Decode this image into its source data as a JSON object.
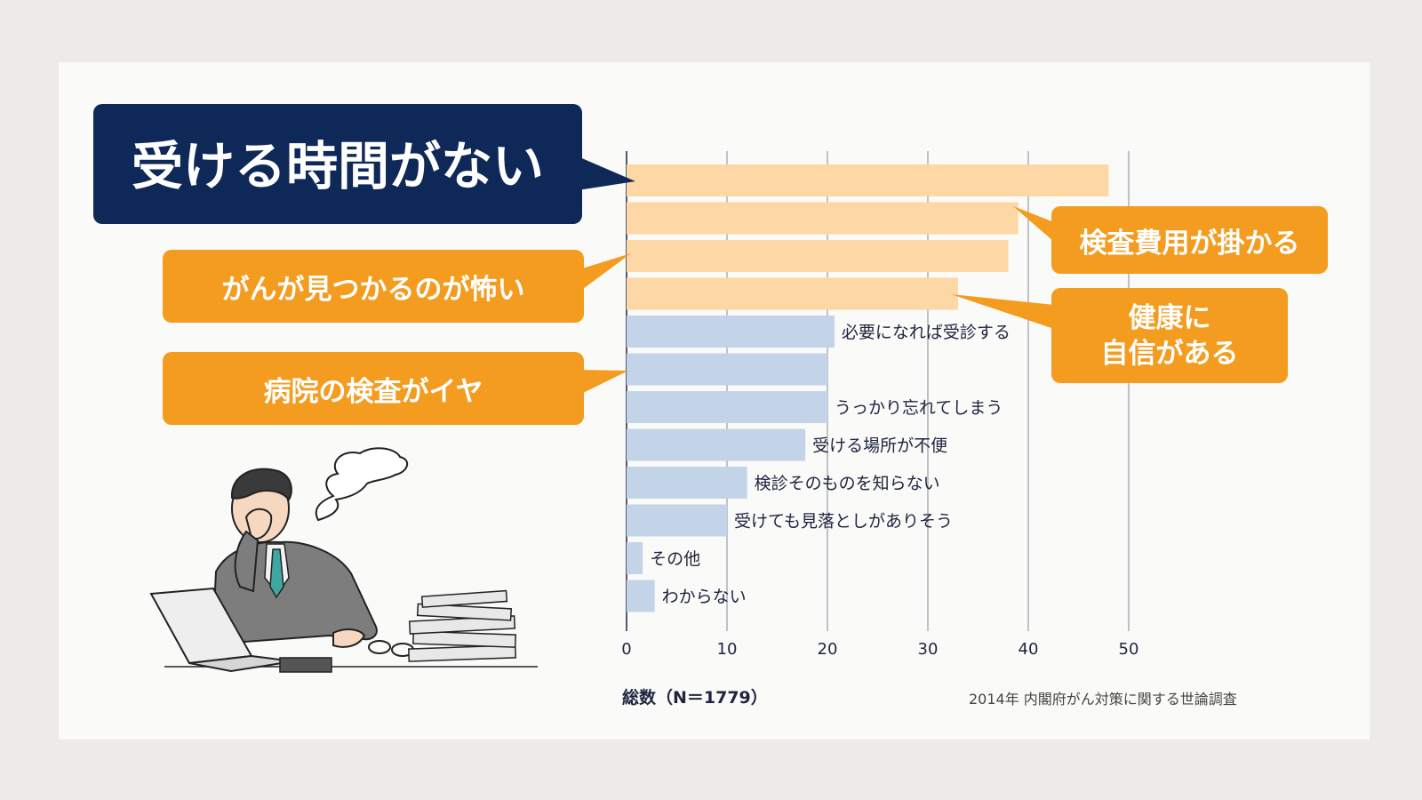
{
  "callouts": {
    "main": "受ける時間がない",
    "fear": "がんが見つかるのが怖い",
    "hospital": "病院の検査がイヤ",
    "cost": "検査費用が掛かる",
    "health_line1": "健康に",
    "health_line2": "自信がある"
  },
  "colors": {
    "navy": "#0e2857",
    "orange": "#f39c1f",
    "bar_orange": "#fdd7a4",
    "bar_blue": "#c3d4e8",
    "grid": "#2a3150",
    "label": "#1f2440"
  },
  "chart_data": {
    "type": "bar",
    "orientation": "horizontal",
    "categories": [
      "受ける時間がない",
      "検査費用が掛かる",
      "がんが見つかるのが怖い",
      "健康に自信がある",
      "必要になれば受診する",
      "病院の検査がイヤ",
      "うっかり忘れてしまう",
      "受ける場所が不便",
      "検診そのものを知らない",
      "受けても見落としがありそう",
      "その他",
      "わからない"
    ],
    "inline_labels": [
      "",
      "",
      "",
      "",
      "必要になれば受診する",
      "",
      "うっかり忘れてしまう",
      "受ける場所が不便",
      "検診そのものを知らない",
      "受けても見落としがありそう",
      "その他",
      "わからない"
    ],
    "values": [
      48.0,
      39.0,
      38.0,
      33.0,
      20.7,
      20.0,
      20.0,
      17.8,
      12.0,
      10.0,
      1.6,
      2.8
    ],
    "highlight_count": 4,
    "xlim": [
      0,
      50
    ],
    "xticks": [
      "0",
      "10",
      "20",
      "30",
      "40",
      "50"
    ],
    "grid": true
  },
  "footer": {
    "total": "総数（N＝1779）",
    "source": "2014年 内閣府がん対策に関する世論調査"
  }
}
